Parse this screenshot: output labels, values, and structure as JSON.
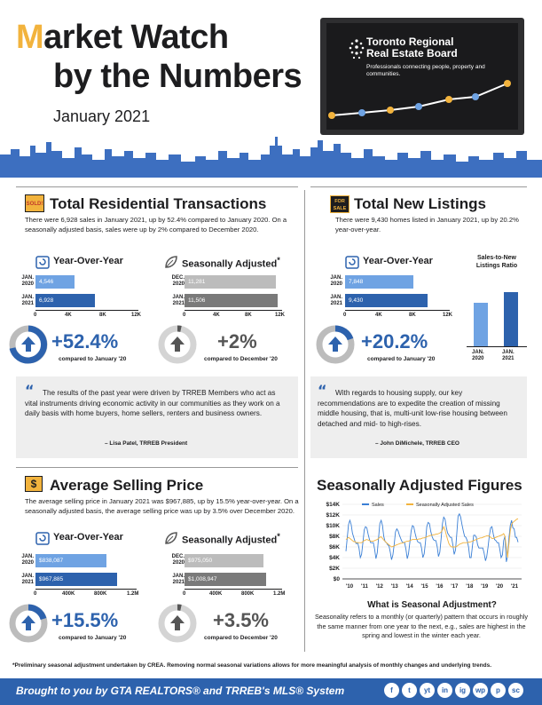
{
  "header": {
    "title_m": "M",
    "title_rest": "arket Watch",
    "title_line2": "by the Numbers",
    "date": "January 2021",
    "org_name_1": "Toronto Regional",
    "org_name_2": "Real Estate Board",
    "org_tagline": "Professionals connecting people, property and communities."
  },
  "colors": {
    "blue": "#2d62ad",
    "light_blue": "#6fa3e3",
    "gray": "#7a7a7a",
    "light_gray": "#bcbcbc",
    "gold": "#f2b33d"
  },
  "transactions": {
    "badge": "SOLD!",
    "heading": "Total Residential Transactions",
    "text": "There were 6,928 sales in January 2021, up by 52.4% compared to January 2020. On a seasonally adjusted basis, sales were up by 2% compared to December 2020.",
    "yoy": {
      "label": "Year-Over-Year",
      "rows": [
        {
          "label1": "JAN.",
          "label2": "2020",
          "value": "4,546",
          "num": 4546
        },
        {
          "label1": "JAN.",
          "label2": "2021",
          "value": "6,928",
          "num": 6928
        }
      ],
      "ticks": [
        "0",
        "4K",
        "8K",
        "12K"
      ],
      "pct": "+52.4%",
      "compare": "compared to January '20",
      "max": 12000
    },
    "sa": {
      "label": "Seasonally Adjusted",
      "sup": "*",
      "rows": [
        {
          "label1": "DEC.",
          "label2": "2020",
          "value": "11,281",
          "num": 11281
        },
        {
          "label1": "JAN.",
          "label2": "2021",
          "value": "11,506",
          "num": 11506
        }
      ],
      "ticks": [
        "0",
        "4K",
        "8K",
        "12K"
      ],
      "pct": "+2%",
      "compare": "compared to December '20",
      "max": 12000
    }
  },
  "listings": {
    "badge_1": "FOR",
    "badge_2": "SALE",
    "heading": "Total New Listings",
    "text": "There were 9,430 homes listed in January 2021, up by 20.2% year-over-year.",
    "yoy": {
      "label": "Year-Over-Year",
      "rows": [
        {
          "label1": "JAN.",
          "label2": "2020",
          "value": "7,848",
          "num": 7848
        },
        {
          "label1": "JAN.",
          "label2": "2021",
          "value": "9,430",
          "num": 9430
        }
      ],
      "ticks": [
        "0",
        "4K",
        "8K",
        "12K"
      ],
      "pct": "+20.2%",
      "compare": "compared to January '20",
      "max": 12000
    },
    "ratio": {
      "title_1": "Sales-to-New",
      "title_2": "Listings Ratio",
      "bars": [
        {
          "value": "58%",
          "num": 58,
          "label1": "JAN.",
          "label2": "2020"
        },
        {
          "value": "73%",
          "num": 73,
          "label1": "JAN.",
          "label2": "2021"
        }
      ]
    }
  },
  "quote1": {
    "text": "The results of the past year were driven by TRREB Members who act as vital instruments driving economic activity in our communities as they work on a daily basis with home buyers, home sellers, renters and business owners.",
    "author": "– Lisa Patel, TRREB President"
  },
  "quote2": {
    "text": "With regards to housing supply, our key recommendations are to expedite the creation of missing middle housing, that is, multi-unit low-rise housing between detached and mid- to high-rises.",
    "author": "– John DiMichele, TRREB CEO"
  },
  "price": {
    "badge": "$",
    "heading": "Average Selling Price",
    "text": "The average selling price in January 2021 was $967,885, up by 15.5% year-over-year. On a seasonally adjusted basis, the average selling price was up by 3.5% over December 2020.",
    "yoy": {
      "label": "Year-Over-Year",
      "rows": [
        {
          "label1": "JAN.",
          "label2": "2020",
          "value": "$838,087",
          "num": 838087
        },
        {
          "label1": "JAN.",
          "label2": "2021",
          "value": "$967,885",
          "num": 967885
        }
      ],
      "ticks": [
        "0",
        "400K",
        "800K",
        "1.2M"
      ],
      "pct": "+15.5%",
      "compare": "compared to January '20",
      "max": 1200000
    },
    "sa": {
      "label": "Seasonally Adjusted",
      "sup": "*",
      "rows": [
        {
          "label1": "DEC.",
          "label2": "2020",
          "value": "$975,050",
          "num": 975050
        },
        {
          "label1": "JAN.",
          "label2": "2021",
          "value": "$1,008,947",
          "num": 1008947
        }
      ],
      "ticks": [
        "0",
        "400K",
        "800K",
        "1.2M"
      ],
      "pct": "+3.5%",
      "compare": "compared to December '20",
      "max": 1200000
    }
  },
  "sa_figures": {
    "heading": "Seasonally Adjusted Figures",
    "question": "What is Seasonal Adjustment?",
    "text": "Seasonality refers to a monthly (or quarterly) pattern that occurs in roughly the same manner from one year to the next, e.g., sales are highest in the spring and lowest in the winter each year."
  },
  "chart_data": {
    "type": "line",
    "title": "",
    "xlabel": "",
    "ylabel": "",
    "ylim": [
      0,
      14000
    ],
    "y_ticks": [
      "$0",
      "$2K",
      "$4K",
      "$6K",
      "$8K",
      "$10K",
      "$12K",
      "$14K"
    ],
    "x_ticks": [
      "'10",
      "'11",
      "'12",
      "'13",
      "'14",
      "'15",
      "'16",
      "'17",
      "'18",
      "'19",
      "'20",
      "'21"
    ],
    "legend": "top-left",
    "series": [
      {
        "name": "Sales",
        "color": "#3a7fd5",
        "values": [
          5200,
          7800,
          10200,
          11000,
          10200,
          8600,
          7800,
          7000,
          6600,
          6800,
          5800,
          4000,
          4600,
          6800,
          9200,
          9800,
          9600,
          8400,
          7400,
          6800,
          6800,
          6800,
          5600,
          3800,
          4900,
          7600,
          10400,
          11000,
          10000,
          8000,
          7000,
          6800,
          6400,
          6200,
          5000,
          3600,
          4500,
          6500,
          8800,
          9400,
          9000,
          8200,
          7600,
          7000,
          6800,
          6800,
          5600,
          3800,
          4700,
          6800,
          9000,
          10000,
          9800,
          8600,
          7600,
          7000,
          6800,
          6800,
          5800,
          4000,
          4700,
          7000,
          9800,
          10600,
          10400,
          9000,
          8000,
          7400,
          7200,
          7200,
          6000,
          4200,
          5000,
          7600,
          10400,
          11600,
          11200,
          9600,
          8600,
          8200,
          7800,
          7800,
          6400,
          4600,
          5400,
          8400,
          11800,
          12200,
          11600,
          10200,
          9000,
          8000,
          7800,
          7200,
          6000,
          4000,
          4000,
          6200,
          8200,
          8200,
          7800,
          6400,
          5800,
          5800,
          5800,
          5800,
          4800,
          3400,
          4200,
          6000,
          8200,
          9600,
          9800,
          8400,
          7400,
          7200,
          6800,
          6800,
          5600,
          4000,
          4500,
          7200,
          8000,
          3200,
          4200,
          7600,
          10000,
          11000,
          9600,
          9400,
          7800,
          7800,
          6900
        ]
      },
      {
        "name": "Seasonally Adjusted Sales",
        "color": "#f2b33d",
        "values": [
          7400,
          7600,
          7800,
          7600,
          7400,
          7200,
          7000,
          7000,
          6800,
          6800,
          6800,
          6800,
          6800,
          7000,
          7200,
          7300,
          7400,
          7300,
          7200,
          7100,
          7100,
          7100,
          7200,
          7300,
          7400,
          7600,
          7800,
          7900,
          7600,
          7300,
          7100,
          6800,
          6600,
          6400,
          6200,
          6000,
          6100,
          6200,
          6300,
          6400,
          6500,
          6600,
          6700,
          6700,
          6800,
          6900,
          7000,
          7100,
          7100,
          7200,
          7300,
          7400,
          7400,
          7400,
          7400,
          7400,
          7500,
          7500,
          7600,
          7700,
          7700,
          7800,
          7900,
          8000,
          8100,
          8200,
          8200,
          8300,
          8300,
          8400,
          8400,
          8500,
          8600,
          8800,
          9200,
          9800,
          9200,
          8200,
          7400,
          6600,
          6200,
          6000,
          6000,
          6000,
          6000,
          6100,
          6300,
          6500,
          6600,
          6700,
          6800,
          6800,
          6800,
          6800,
          6900,
          6900,
          7000,
          7100,
          7200,
          7300,
          7400,
          7500,
          7600,
          7700,
          7700,
          7800,
          7900,
          8000,
          8100,
          8100,
          8000,
          7800,
          7600,
          7600,
          7700,
          7800,
          7900,
          8000,
          8100,
          8200,
          8300,
          8500,
          8000,
          6000,
          4000,
          6500,
          9000,
          10200,
          10600,
          10800,
          11000,
          11200,
          11300
        ]
      }
    ]
  },
  "footnote": "*Preliminary seasonal adjustment undertaken by CREA. Removing normal seasonal variations allows for more meaningful analysis of monthly changes and underlying trends.",
  "footer": {
    "text": "Brought to you by GTA REALTORS® and TRREB's MLS® System",
    "social": [
      "f",
      "t",
      "yt",
      "in",
      "ig",
      "wp",
      "p",
      "sc"
    ]
  }
}
